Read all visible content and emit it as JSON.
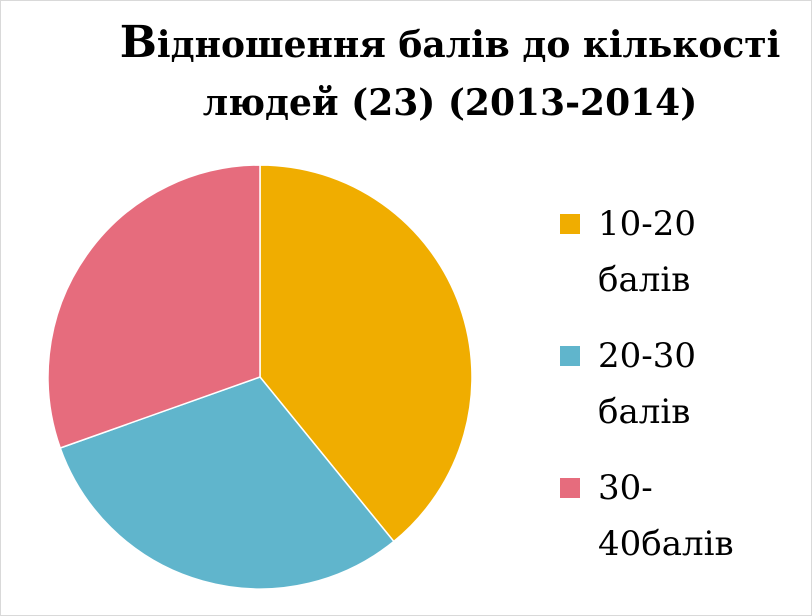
{
  "chart_data": {
    "type": "pie",
    "title": "Відношення балів до кількості людей (23) (2013-2014)",
    "categories": [
      "10-20 балів",
      "20-30 балів",
      "30-40балів"
    ],
    "legend_lines": [
      [
        "10-20",
        "балів"
      ],
      [
        "20-30",
        "балів"
      ],
      [
        "30-",
        "40балів"
      ]
    ],
    "values": [
      9,
      7,
      7
    ],
    "colors": [
      "#F0AD00",
      "#60B5CC",
      "#E66C7D"
    ],
    "legend_position": "right"
  },
  "title_parts": {
    "first_letter": "В",
    "line1_rest": "ідношення балів до кількості",
    "line2": "людей (23) (2013-2014)"
  }
}
